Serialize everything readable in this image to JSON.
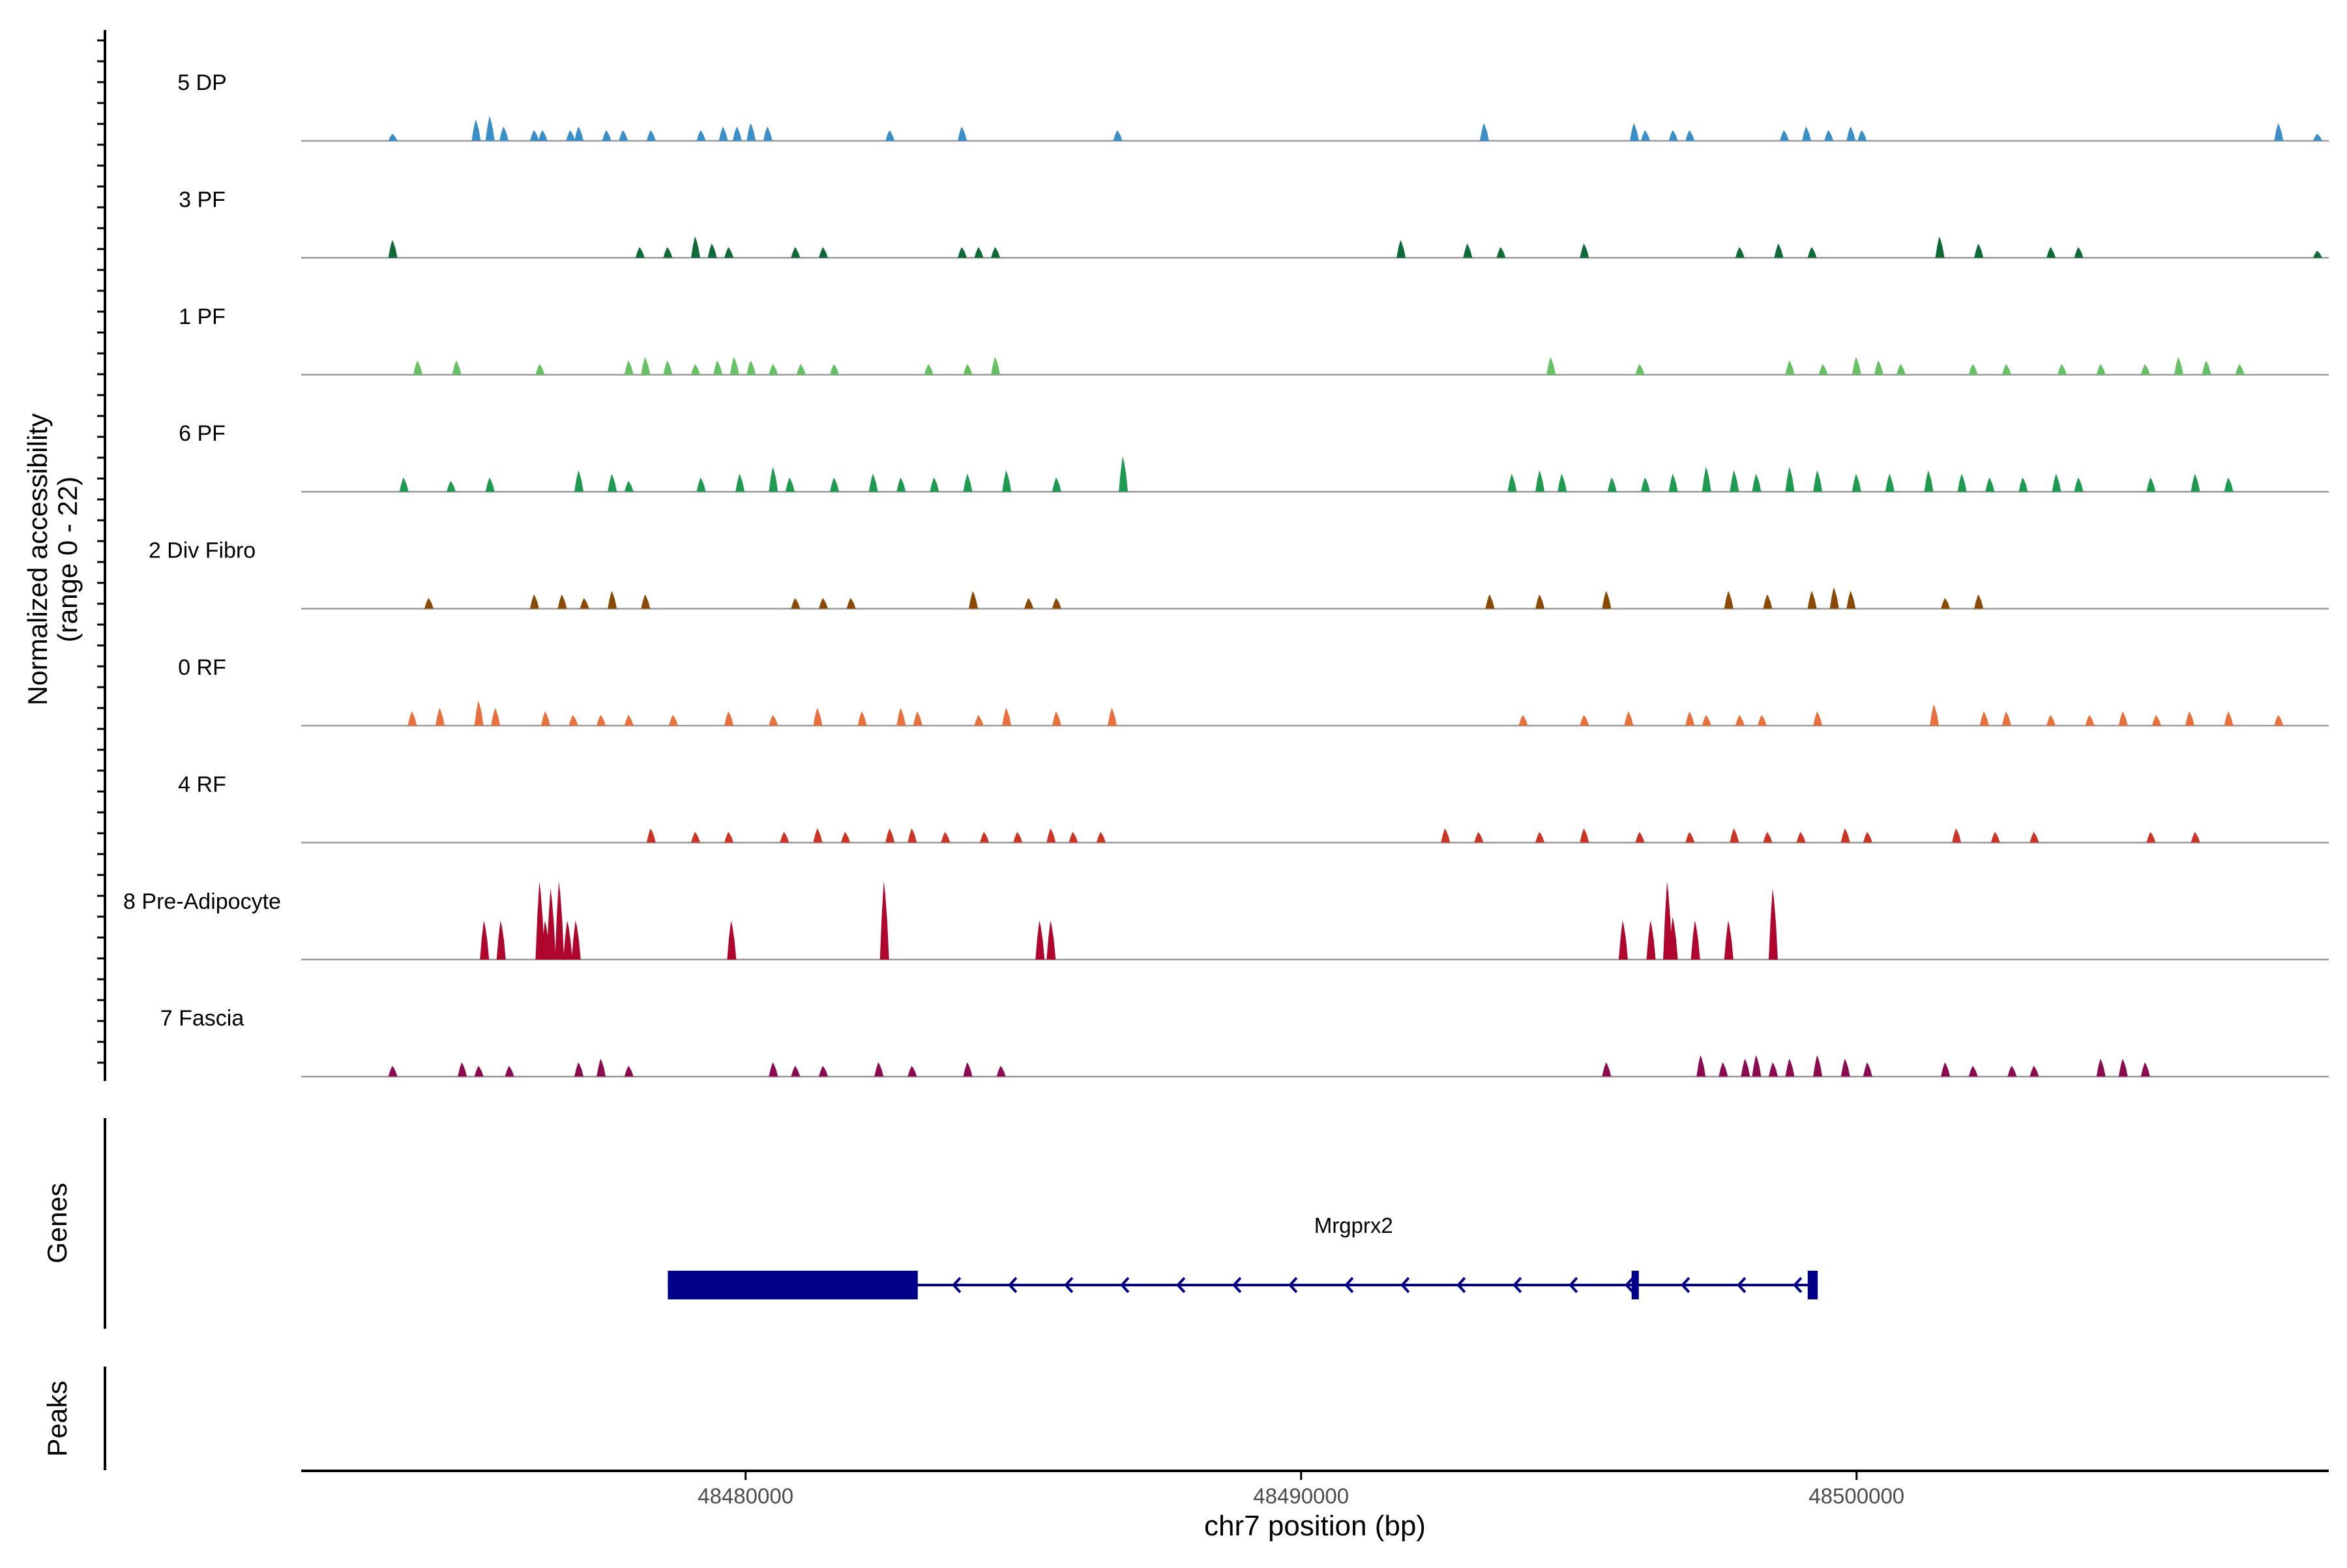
{
  "chart_data": {
    "type": "area",
    "title": "",
    "ylabel": {
      "line1": "Normalized accessibility",
      "line2": "(range 0 - 22)"
    },
    "ylim": [
      0,
      22
    ],
    "xlabel": "chr7 position (bp)",
    "xlim": [
      48472000,
      48508500
    ],
    "xticks": [
      {
        "value": 48480000,
        "label": "48480000"
      },
      {
        "value": 48490000,
        "label": "48490000"
      },
      {
        "value": 48500000,
        "label": "48500000"
      }
    ],
    "genes_label": "Genes",
    "peaks_label": "Peaks",
    "gene": {
      "name": "Mrgprx2",
      "strand": "-",
      "start": 48478600,
      "end": 48499300,
      "color": "#00008B",
      "exons": [
        [
          48478600,
          48483100
        ],
        [
          48495950,
          48496080
        ],
        [
          48499120,
          48499300
        ]
      ]
    },
    "series": [
      {
        "name": "5 DP",
        "color": "#3A8FC8",
        "peaks": [
          [
            48473650,
            2
          ],
          [
            48475150,
            6
          ],
          [
            48475400,
            7
          ],
          [
            48475650,
            4
          ],
          [
            48476200,
            3
          ],
          [
            48476350,
            3
          ],
          [
            48476850,
            3
          ],
          [
            48477000,
            4
          ],
          [
            48477500,
            3
          ],
          [
            48477800,
            3
          ],
          [
            48478300,
            3
          ],
          [
            48479200,
            3
          ],
          [
            48479600,
            4
          ],
          [
            48479850,
            4
          ],
          [
            48480100,
            5
          ],
          [
            48480400,
            4
          ],
          [
            48482600,
            3
          ],
          [
            48483900,
            4
          ],
          [
            48486700,
            3
          ],
          [
            48493300,
            5
          ],
          [
            48496000,
            5
          ],
          [
            48496200,
            3
          ],
          [
            48496700,
            3
          ],
          [
            48497000,
            3
          ],
          [
            48498700,
            3
          ],
          [
            48499100,
            4
          ],
          [
            48499500,
            3
          ],
          [
            48499900,
            4
          ],
          [
            48500100,
            3
          ],
          [
            48508300,
            2
          ],
          [
            48507600,
            5
          ]
        ]
      },
      {
        "name": "3 PF",
        "color": "#0E6B38",
        "peaks": [
          [
            48473650,
            5
          ],
          [
            48478100,
            3
          ],
          [
            48478600,
            3
          ],
          [
            48479100,
            6
          ],
          [
            48479400,
            4
          ],
          [
            48479700,
            3
          ],
          [
            48480900,
            3
          ],
          [
            48481400,
            3
          ],
          [
            48483900,
            3
          ],
          [
            48484200,
            3
          ],
          [
            48484500,
            3
          ],
          [
            48491800,
            5
          ],
          [
            48493000,
            4
          ],
          [
            48493600,
            3
          ],
          [
            48495100,
            4
          ],
          [
            48497900,
            3
          ],
          [
            48498600,
            4
          ],
          [
            48499200,
            3
          ],
          [
            48501500,
            6
          ],
          [
            48502200,
            4
          ],
          [
            48503500,
            3
          ],
          [
            48504000,
            3
          ],
          [
            48508300,
            2
          ]
        ]
      },
      {
        "name": "1 PF",
        "color": "#66C164",
        "peaks": [
          [
            48474100,
            4
          ],
          [
            48474800,
            4
          ],
          [
            48476300,
            3
          ],
          [
            48477900,
            4
          ],
          [
            48478200,
            5
          ],
          [
            48478600,
            4
          ],
          [
            48479100,
            3
          ],
          [
            48479500,
            4
          ],
          [
            48479800,
            5
          ],
          [
            48480100,
            4
          ],
          [
            48480500,
            3
          ],
          [
            48481000,
            3
          ],
          [
            48481600,
            3
          ],
          [
            48483300,
            3
          ],
          [
            48484000,
            3
          ],
          [
            48484500,
            5
          ],
          [
            48494500,
            5
          ],
          [
            48496100,
            3
          ],
          [
            48498800,
            4
          ],
          [
            48499400,
            3
          ],
          [
            48500000,
            5
          ],
          [
            48500400,
            4
          ],
          [
            48500800,
            3
          ],
          [
            48502100,
            3
          ],
          [
            48502700,
            3
          ],
          [
            48503700,
            3
          ],
          [
            48504400,
            3
          ],
          [
            48505200,
            3
          ],
          [
            48505800,
            5
          ],
          [
            48506300,
            4
          ],
          [
            48506900,
            3
          ]
        ]
      },
      {
        "name": "6 PF",
        "color": "#1E9B50",
        "peaks": [
          [
            48473850,
            4
          ],
          [
            48474700,
            3
          ],
          [
            48475400,
            4
          ],
          [
            48477000,
            6
          ],
          [
            48477600,
            5
          ],
          [
            48477900,
            3
          ],
          [
            48479200,
            4
          ],
          [
            48479900,
            5
          ],
          [
            48480500,
            7
          ],
          [
            48480800,
            4
          ],
          [
            48481600,
            4
          ],
          [
            48482300,
            5
          ],
          [
            48482800,
            4
          ],
          [
            48483400,
            4
          ],
          [
            48484000,
            5
          ],
          [
            48484700,
            6
          ],
          [
            48485600,
            4
          ],
          [
            48486800,
            10
          ],
          [
            48493800,
            5
          ],
          [
            48494300,
            6
          ],
          [
            48494700,
            5
          ],
          [
            48495600,
            4
          ],
          [
            48496200,
            4
          ],
          [
            48496700,
            5
          ],
          [
            48497300,
            7
          ],
          [
            48497800,
            6
          ],
          [
            48498200,
            5
          ],
          [
            48498800,
            7
          ],
          [
            48499300,
            6
          ],
          [
            48500000,
            5
          ],
          [
            48500600,
            5
          ],
          [
            48501300,
            6
          ],
          [
            48501900,
            5
          ],
          [
            48502400,
            4
          ],
          [
            48503000,
            4
          ],
          [
            48503600,
            5
          ],
          [
            48504000,
            4
          ],
          [
            48505300,
            4
          ],
          [
            48506100,
            5
          ],
          [
            48506700,
            4
          ]
        ]
      },
      {
        "name": "2 Div Fibro",
        "color": "#8A4A05",
        "peaks": [
          [
            48474300,
            3
          ],
          [
            48476200,
            4
          ],
          [
            48476700,
            4
          ],
          [
            48477100,
            3
          ],
          [
            48477600,
            5
          ],
          [
            48478200,
            4
          ],
          [
            48480900,
            3
          ],
          [
            48481400,
            3
          ],
          [
            48481900,
            3
          ],
          [
            48484100,
            5
          ],
          [
            48485100,
            3
          ],
          [
            48485600,
            3
          ],
          [
            48493400,
            4
          ],
          [
            48494300,
            4
          ],
          [
            48495500,
            5
          ],
          [
            48497700,
            5
          ],
          [
            48498400,
            4
          ],
          [
            48499200,
            5
          ],
          [
            48499600,
            6
          ],
          [
            48499900,
            5
          ],
          [
            48501600,
            3
          ],
          [
            48502200,
            4
          ]
        ]
      },
      {
        "name": "0 RF",
        "color": "#E8703C",
        "peaks": [
          [
            48474000,
            4
          ],
          [
            48474500,
            5
          ],
          [
            48475200,
            7
          ],
          [
            48475500,
            5
          ],
          [
            48476400,
            4
          ],
          [
            48476900,
            3
          ],
          [
            48477400,
            3
          ],
          [
            48477900,
            3
          ],
          [
            48478700,
            3
          ],
          [
            48479700,
            4
          ],
          [
            48480500,
            3
          ],
          [
            48481300,
            5
          ],
          [
            48482100,
            4
          ],
          [
            48482800,
            5
          ],
          [
            48483100,
            4
          ],
          [
            48484200,
            3
          ],
          [
            48484700,
            5
          ],
          [
            48485600,
            4
          ],
          [
            48486600,
            5
          ],
          [
            48494000,
            3
          ],
          [
            48495100,
            3
          ],
          [
            48495900,
            4
          ],
          [
            48497000,
            4
          ],
          [
            48497300,
            3
          ],
          [
            48497900,
            3
          ],
          [
            48498300,
            3
          ],
          [
            48499300,
            4
          ],
          [
            48501400,
            6
          ],
          [
            48502300,
            4
          ],
          [
            48502700,
            4
          ],
          [
            48503500,
            3
          ],
          [
            48504200,
            3
          ],
          [
            48504800,
            4
          ],
          [
            48505400,
            3
          ],
          [
            48506000,
            4
          ],
          [
            48506700,
            4
          ],
          [
            48507600,
            3
          ]
        ]
      },
      {
        "name": "4 RF",
        "color": "#CC3426",
        "peaks": [
          [
            48478300,
            4
          ],
          [
            48479100,
            3
          ],
          [
            48479700,
            3
          ],
          [
            48480700,
            3
          ],
          [
            48481300,
            4
          ],
          [
            48481800,
            3
          ],
          [
            48482600,
            4
          ],
          [
            48483000,
            4
          ],
          [
            48483600,
            3
          ],
          [
            48484300,
            3
          ],
          [
            48484900,
            3
          ],
          [
            48485500,
            4
          ],
          [
            48485900,
            3
          ],
          [
            48486400,
            3
          ],
          [
            48492600,
            4
          ],
          [
            48493200,
            3
          ],
          [
            48494300,
            3
          ],
          [
            48495100,
            4
          ],
          [
            48496100,
            3
          ],
          [
            48497000,
            3
          ],
          [
            48497800,
            4
          ],
          [
            48498400,
            3
          ],
          [
            48499000,
            3
          ],
          [
            48499800,
            4
          ],
          [
            48500200,
            3
          ],
          [
            48501800,
            4
          ],
          [
            48502500,
            3
          ],
          [
            48503200,
            3
          ],
          [
            48505300,
            3
          ],
          [
            48506100,
            3
          ]
        ]
      },
      {
        "name": "8 Pre-Adipocyte",
        "color": "#B0052C",
        "peaks": [
          [
            48475300,
            11
          ],
          [
            48475600,
            11
          ],
          [
            48476300,
            22
          ],
          [
            48476400,
            11
          ],
          [
            48476500,
            20
          ],
          [
            48476650,
            22
          ],
          [
            48476800,
            11
          ],
          [
            48476950,
            11
          ],
          [
            48479750,
            11
          ],
          [
            48482500,
            22
          ],
          [
            48485300,
            11
          ],
          [
            48485500,
            11
          ],
          [
            48495800,
            11
          ],
          [
            48496300,
            11
          ],
          [
            48496600,
            22
          ],
          [
            48496700,
            12
          ],
          [
            48497100,
            11
          ],
          [
            48497700,
            11
          ],
          [
            48498500,
            20
          ]
        ]
      },
      {
        "name": "7 Fascia",
        "color": "#8B0A50",
        "peaks": [
          [
            48473650,
            3
          ],
          [
            48474900,
            4
          ],
          [
            48475200,
            3
          ],
          [
            48475750,
            3
          ],
          [
            48477000,
            4
          ],
          [
            48477400,
            5
          ],
          [
            48477900,
            3
          ],
          [
            48480500,
            4
          ],
          [
            48480900,
            3
          ],
          [
            48481400,
            3
          ],
          [
            48482400,
            4
          ],
          [
            48483000,
            3
          ],
          [
            48484000,
            4
          ],
          [
            48484600,
            3
          ],
          [
            48495500,
            4
          ],
          [
            48497200,
            6
          ],
          [
            48497600,
            4
          ],
          [
            48498000,
            5
          ],
          [
            48498200,
            6
          ],
          [
            48498500,
            4
          ],
          [
            48498800,
            5
          ],
          [
            48499300,
            6
          ],
          [
            48499800,
            5
          ],
          [
            48500200,
            4
          ],
          [
            48501600,
            4
          ],
          [
            48502100,
            3
          ],
          [
            48502800,
            3
          ],
          [
            48503200,
            3
          ],
          [
            48504400,
            5
          ],
          [
            48504800,
            5
          ],
          [
            48505200,
            4
          ]
        ]
      }
    ]
  }
}
